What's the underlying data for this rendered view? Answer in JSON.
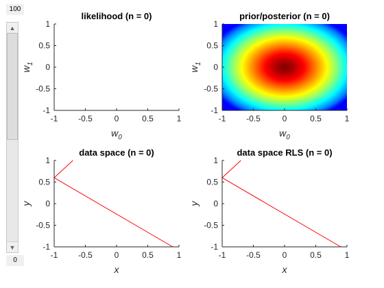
{
  "slider": {
    "max_label": "100",
    "min_label": "0",
    "value": 100,
    "min": 0,
    "max": 100
  },
  "chart_data": [
    {
      "type": "heatmap",
      "title": "likelihood (n = 0)",
      "xlabel": "w",
      "xlabel_sub": "0",
      "ylabel": "w",
      "ylabel_sub": "1",
      "xlim": [
        -1,
        1
      ],
      "ylim": [
        -1,
        1
      ],
      "xticks": [
        "-1",
        "-0.5",
        "0",
        "0.5",
        "1"
      ],
      "yticks": [
        "1",
        "0.5",
        "0",
        "-0.5",
        "-1"
      ],
      "values": []
    },
    {
      "type": "heatmap",
      "title": "prior/posterior (n = 0)",
      "xlabel": "w",
      "xlabel_sub": "0",
      "ylabel": "w",
      "ylabel_sub": "1",
      "xlim": [
        -1,
        1
      ],
      "ylim": [
        -1,
        1
      ],
      "xticks": [
        "-1",
        "-0.5",
        "0",
        "0.5",
        "1"
      ],
      "yticks": [
        "1",
        "0.5",
        "0",
        "-0.5",
        "-1"
      ],
      "colormap": "jet",
      "center": [
        0,
        0
      ]
    },
    {
      "type": "line",
      "title": "data space (n = 0)",
      "xlabel": "x",
      "ylabel": "y",
      "xlim": [
        -1,
        1
      ],
      "ylim": [
        -1,
        1
      ],
      "xticks": [
        "-1",
        "-0.5",
        "0",
        "0.5",
        "1"
      ],
      "yticks": [
        "1",
        "0.5",
        "0",
        "-0.5",
        "-1"
      ],
      "series": [
        {
          "color": "#ff0000",
          "x": [
            -1,
            -0.7
          ],
          "y": [
            0.6,
            1.0
          ]
        },
        {
          "color": "#ff0000",
          "x": [
            -1,
            0.9
          ],
          "y": [
            0.6,
            -1.0
          ]
        }
      ]
    },
    {
      "type": "line",
      "title": "data space RLS (n = 0)",
      "xlabel": "x",
      "ylabel": "y",
      "xlim": [
        -1,
        1
      ],
      "ylim": [
        -1,
        1
      ],
      "xticks": [
        "-1",
        "-0.5",
        "0",
        "0.5",
        "1"
      ],
      "yticks": [
        "1",
        "0.5",
        "0",
        "-0.5",
        "-1"
      ],
      "series": [
        {
          "color": "#ff0000",
          "x": [
            -1,
            -0.7
          ],
          "y": [
            0.6,
            1.0
          ]
        },
        {
          "color": "#ff0000",
          "x": [
            -1,
            0.9
          ],
          "y": [
            0.6,
            -1.0
          ]
        }
      ]
    }
  ]
}
